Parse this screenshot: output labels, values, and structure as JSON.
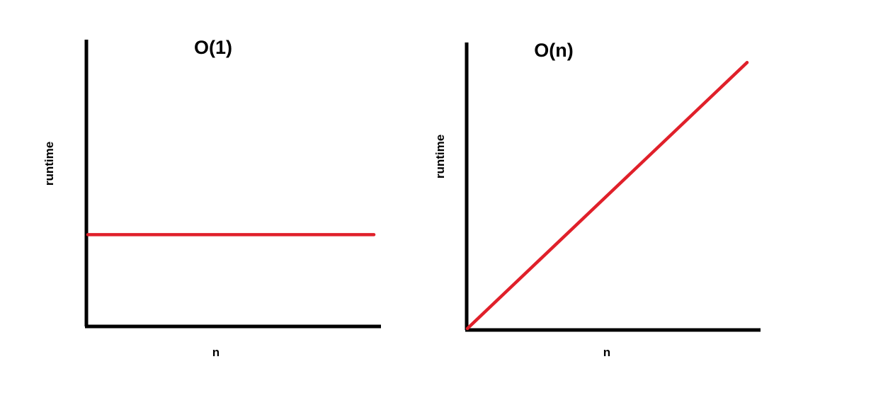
{
  "chart_data": [
    {
      "type": "line",
      "title": "O(1)",
      "xlabel": "n",
      "ylabel": "runtime",
      "xlim": [
        0,
        1
      ],
      "ylim": [
        0,
        1
      ],
      "grid": false,
      "legend": "none",
      "series": [
        {
          "x": [
            0,
            1
          ],
          "values": [
            0.32,
            0.32
          ]
        }
      ]
    },
    {
      "type": "line",
      "title": "O(n)",
      "xlabel": "n",
      "ylabel": "runtime",
      "xlim": [
        0,
        1
      ],
      "ylim": [
        0,
        1
      ],
      "grid": false,
      "legend": "none",
      "series": [
        {
          "x": [
            0,
            1
          ],
          "values": [
            0,
            0.93
          ]
        }
      ]
    }
  ],
  "colors": {
    "axis": "#000000",
    "series": "#e0202a"
  }
}
